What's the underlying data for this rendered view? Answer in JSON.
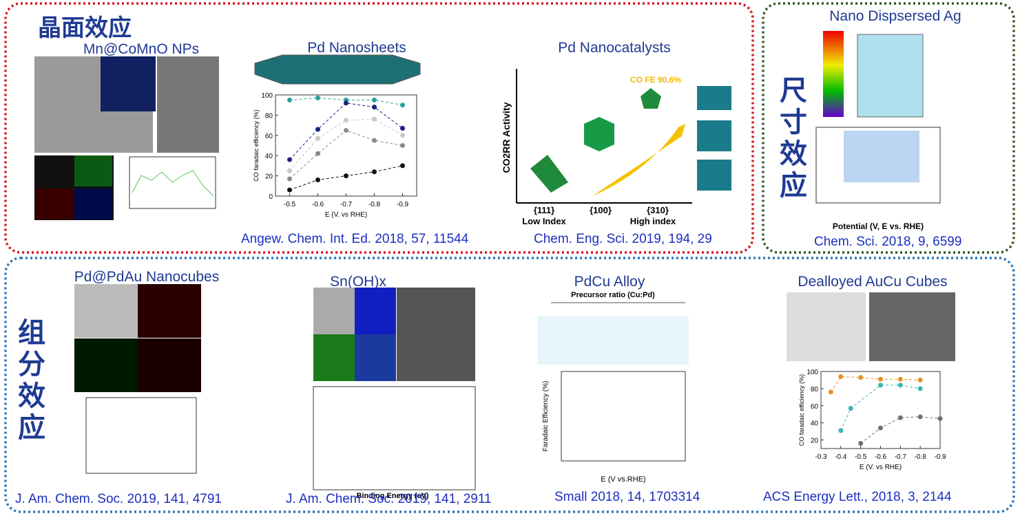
{
  "effects": {
    "facet": "晶面效应",
    "size": "尺寸效应",
    "composition": "组分效应"
  },
  "panels": [
    {
      "title": "Mn@CoMnO NPs"
    },
    {
      "title": "Pd Nanosheets",
      "citation": "Angew. Chem. Int. Ed. 2018, 57, 11544",
      "chart": {
        "type": "scatter",
        "y_label": "CO faradaic efficiency (%)",
        "x_label": "E (V. vs RHE)",
        "xlim": [
          -0.45,
          -0.95
        ],
        "xticks": [
          -0.5,
          -0.6,
          -0.7,
          -0.8,
          -0.9
        ],
        "ylim": [
          0,
          100
        ],
        "yticks": [
          0,
          20,
          40,
          60,
          80,
          100
        ],
        "series": [
          {
            "color": "#2aa198",
            "x": [
              -0.5,
              -0.6,
              -0.7,
              -0.8,
              -0.9
            ],
            "values": [
              95,
              97,
              95,
              95,
              90
            ]
          },
          {
            "color": "#1a237e",
            "x": [
              -0.5,
              -0.6,
              -0.7,
              -0.8,
              -0.9
            ],
            "values": [
              36,
              66,
              92,
              88,
              67
            ]
          },
          {
            "color": "#c8c8c8",
            "x": [
              -0.5,
              -0.6,
              -0.7,
              -0.8,
              -0.9
            ],
            "values": [
              25,
              57,
              75,
              76,
              60
            ]
          },
          {
            "color": "#8a8a8a",
            "x": [
              -0.5,
              -0.6,
              -0.7,
              -0.8,
              -0.9
            ],
            "values": [
              17,
              42,
              65,
              55,
              50
            ]
          },
          {
            "color": "#111111",
            "x": [
              -0.5,
              -0.6,
              -0.7,
              -0.8,
              -0.9
            ],
            "values": [
              6,
              16,
              20,
              24,
              30
            ]
          }
        ]
      }
    },
    {
      "title": "Pd Nanocatalysts",
      "citation": "Chem. Eng. Sci. 2019, 194, 29",
      "figure": {
        "annotation": "CO FE 90.6%",
        "y_label": "CO2RR Activity",
        "facets": [
          "{111}",
          "{100}",
          "{310}"
        ],
        "low": "Low Index",
        "high": "High index"
      }
    },
    {
      "title": "Nano Dispsersed Ag",
      "citation": "Chem. Sci. 2018, 9, 6599",
      "figure": {
        "x_label": "Potential (V, E vs. RHE)"
      }
    },
    {
      "title": "Pd@PdAu Nanocubes",
      "citation": "J. Am. Chem. Soc. 2019, 141, 4791"
    },
    {
      "title": "Sn(OH)x",
      "citation": "J. Am. Chem. Soc. 2019, 141, 2911",
      "figure": {
        "x_label": "Binding Energy (eV)"
      }
    },
    {
      "title": "PdCu Alloy",
      "citation": "Small 2018, 14, 1703314",
      "figure": {
        "header": "Precursor ratio (Cu:Pd)",
        "y_label": "Faradaic Efficiency (%)",
        "x_label": "E (V vs.RHE)"
      }
    },
    {
      "title": "Dealloyed AuCu Cubes",
      "citation": "ACS Energy Lett., 2018, 3, 2144",
      "chart": {
        "type": "scatter",
        "y_label": "CO faradaic efficiency (%)",
        "x_label": "E (V. vs RHE)",
        "xlim": [
          -0.3,
          -0.9
        ],
        "xticks": [
          -0.3,
          -0.4,
          -0.5,
          -0.6,
          -0.7,
          -0.8,
          -0.9
        ],
        "ylim": [
          10,
          100
        ],
        "yticks": [
          20,
          40,
          60,
          80,
          100
        ],
        "series": [
          {
            "color": "#e8902a",
            "x": [
              -0.35,
              -0.4,
              -0.5,
              -0.6,
              -0.7,
              -0.8
            ],
            "values": [
              76,
              94,
              93,
              91,
              91,
              90
            ]
          },
          {
            "color": "#3bb7b0",
            "x": [
              -0.4,
              -0.45,
              -0.6,
              -0.7,
              -0.8
            ],
            "values": [
              31,
              57,
              84,
              84,
              80
            ]
          },
          {
            "color": "#707070",
            "x": [
              -0.5,
              -0.6,
              -0.7,
              -0.8,
              -0.9
            ],
            "values": [
              16,
              34,
              46,
              47,
              45
            ]
          }
        ]
      }
    }
  ]
}
